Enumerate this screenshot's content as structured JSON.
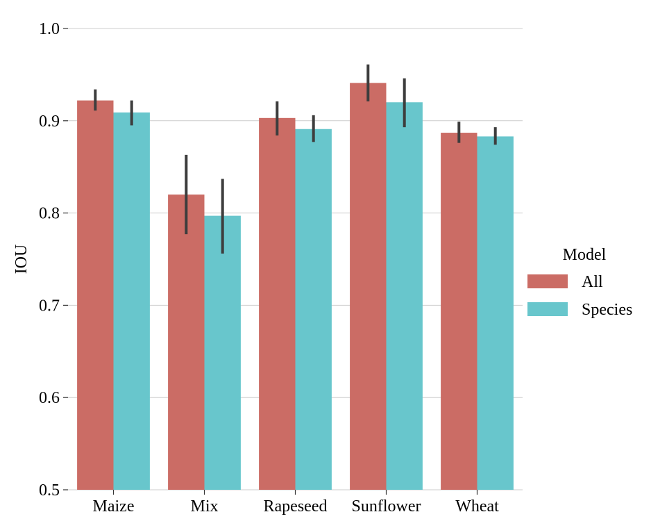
{
  "chart_data": {
    "type": "bar",
    "categories": [
      "Maize",
      "Mix",
      "Rapeseed",
      "Sunflower",
      "Wheat"
    ],
    "series": [
      {
        "name": "All",
        "color": "#cb6c65",
        "values": [
          0.922,
          0.82,
          0.903,
          0.941,
          0.887
        ],
        "err_low": [
          0.911,
          0.777,
          0.884,
          0.921,
          0.876
        ],
        "err_high": [
          0.934,
          0.863,
          0.921,
          0.961,
          0.899
        ]
      },
      {
        "name": "Species",
        "color": "#68c6cc",
        "values": [
          0.909,
          0.797,
          0.891,
          0.92,
          0.883
        ],
        "err_low": [
          0.895,
          0.756,
          0.877,
          0.893,
          0.874
        ],
        "err_high": [
          0.922,
          0.837,
          0.906,
          0.946,
          0.893
        ]
      }
    ],
    "ylabel": "IOU",
    "xlabel": "",
    "ylim": [
      0.5,
      1.0
    ],
    "yticks": [
      "0.5",
      "0.6",
      "0.7",
      "0.8",
      "0.9",
      "1.0"
    ],
    "grid": "horizontal",
    "legend": {
      "title": "Model",
      "placement": "right",
      "entries": [
        "All",
        "Species"
      ]
    }
  }
}
